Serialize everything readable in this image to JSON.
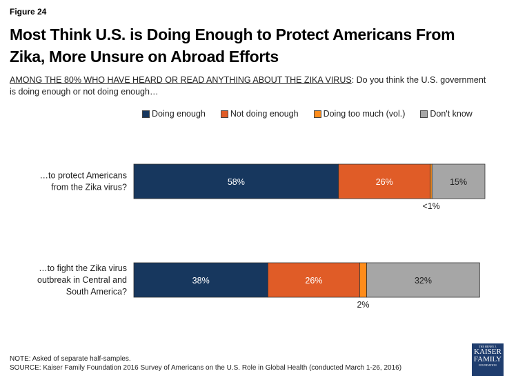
{
  "figure_label": "Figure 24",
  "title": "Most Think U.S. is Doing Enough to Protect Americans From Zika, More Unsure on Abroad Efforts",
  "subtitle": {
    "underlined": "AMONG THE 80% WHO HAVE HEARD OR READ ANYTHING ABOUT THE ZIKA VIRUS",
    "rest": ": Do you think the U.S. government is doing enough or not doing enough…"
  },
  "note": "NOTE: Asked of separate half-samples.",
  "source": "SOURCE: Kaiser Family Foundation 2016 Survey of Americans on the U.S. Role in Global Health (conducted March 1-26, 2016)",
  "logo": {
    "small": "THE HENRY J.",
    "line1": "KAISER",
    "line2": "FAMILY",
    "bottom": "FOUNDATION"
  },
  "chart_data": {
    "type": "bar",
    "orientation": "horizontal",
    "stacked": true,
    "title": "Most Think U.S. is Doing Enough to Protect Americans From Zika, More Unsure on Abroad Efforts",
    "xlabel": "",
    "ylabel": "",
    "legend_position": "top",
    "categories": [
      "…to protect Americans from the Zika virus?",
      "…to fight the Zika virus outbreak in Central and South America?"
    ],
    "category_lines": [
      [
        "…to protect Americans",
        "from the Zika virus?"
      ],
      [
        "…to fight the Zika virus",
        "outbreak in Central and",
        "South America?"
      ]
    ],
    "series": [
      {
        "name": "Doing enough",
        "color": "#17375e",
        "label_color": "#ffffff",
        "values": [
          58,
          38
        ],
        "labels": [
          "58%",
          "38%"
        ]
      },
      {
        "name": "Not doing enough",
        "color": "#e05c27",
        "label_color": "#ffffff",
        "values": [
          26,
          26
        ],
        "labels": [
          "26%",
          "26%"
        ]
      },
      {
        "name": "Doing too much (vol.)",
        "color": "#ff8c1a",
        "label_color": "#222222",
        "values": [
          0.5,
          2
        ],
        "labels": [
          "<1%",
          "2%"
        ],
        "label_outside": true
      },
      {
        "name": "Don't know",
        "color": "#a6a6a6",
        "label_color": "#222222",
        "values": [
          15,
          32
        ],
        "labels": [
          "15%",
          "32%"
        ]
      }
    ]
  }
}
